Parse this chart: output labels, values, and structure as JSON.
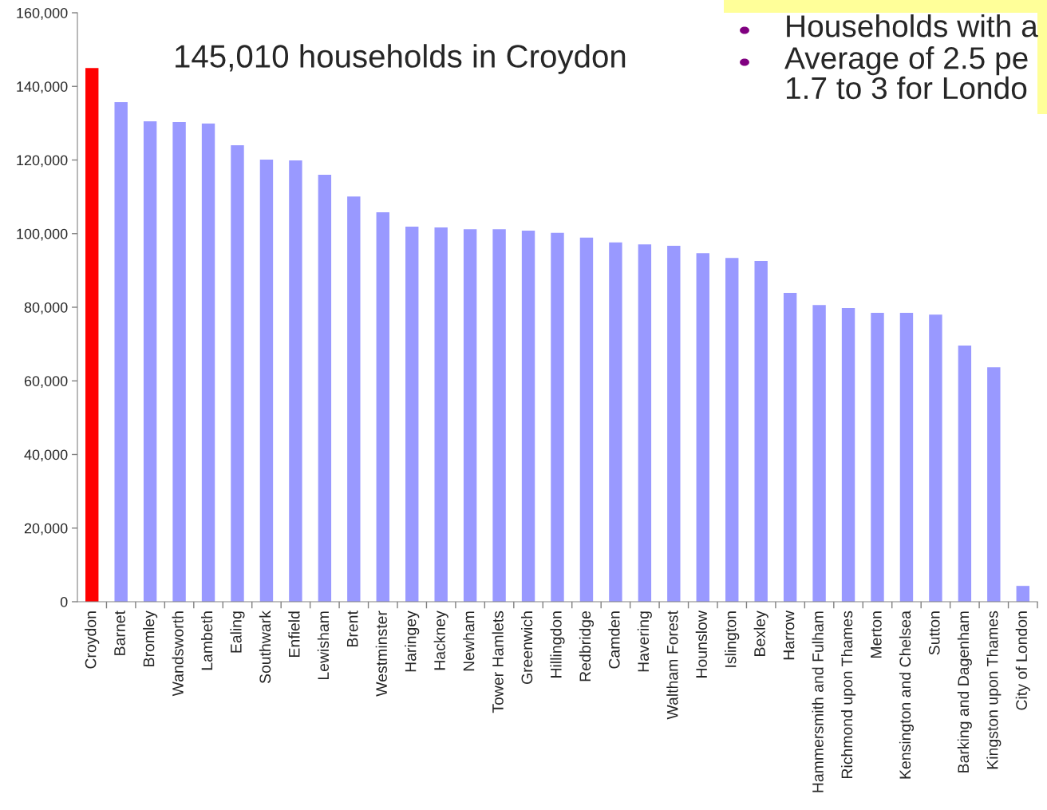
{
  "chart_data": {
    "type": "bar",
    "categories": [
      "Croydon",
      "Barnet",
      "Bromley",
      "Wandsworth",
      "Lambeth",
      "Ealing",
      "Southwark",
      "Enfield",
      "Lewisham",
      "Brent",
      "Westminster",
      "Haringey",
      "Hackney",
      "Newham",
      "Tower Hamlets",
      "Greenwich",
      "Hillingdon",
      "Redbridge",
      "Camden",
      "Havering",
      "Waltham Forest",
      "Hounslow",
      "Islington",
      "Bexley",
      "Harrow",
      "Hammersmith and Fulham",
      "Richmond upon Thames",
      "Merton",
      "Kensington and Chelsea",
      "Sutton",
      "Barking and Dagenham",
      "Kingston upon Thames",
      "City of London"
    ],
    "values": [
      145010,
      135700,
      130500,
      130300,
      129900,
      124000,
      120100,
      119900,
      116000,
      110100,
      105800,
      101900,
      101700,
      101200,
      101200,
      100800,
      100200,
      98900,
      97600,
      97100,
      96700,
      94700,
      93400,
      92600,
      83900,
      80600,
      79800,
      78500,
      78500,
      78000,
      69600,
      63700,
      4300
    ],
    "colors": [
      "#ff0000",
      "#9999ff",
      "#9999ff",
      "#9999ff",
      "#9999ff",
      "#9999ff",
      "#9999ff",
      "#9999ff",
      "#9999ff",
      "#9999ff",
      "#9999ff",
      "#9999ff",
      "#9999ff",
      "#9999ff",
      "#9999ff",
      "#9999ff",
      "#9999ff",
      "#9999ff",
      "#9999ff",
      "#9999ff",
      "#9999ff",
      "#9999ff",
      "#9999ff",
      "#9999ff",
      "#9999ff",
      "#9999ff",
      "#9999ff",
      "#9999ff",
      "#9999ff",
      "#9999ff",
      "#9999ff",
      "#9999ff",
      "#9999ff"
    ],
    "ylim": [
      0,
      160000
    ],
    "yticks": [
      0,
      {
        "value": 20000,
        "label": "20,000"
      },
      {
        "value": 40000,
        "label": "40,000"
      },
      {
        "value": 60000,
        "label": "60,000"
      },
      {
        "value": 80000,
        "label": "80,000"
      },
      {
        "value": 100000,
        "label": "100,000"
      },
      {
        "value": 120000,
        "label": "120,000"
      },
      {
        "value": 140000,
        "label": "140,000"
      },
      {
        "value": 160000,
        "label": "160,000"
      }
    ],
    "grid": false,
    "legend": false,
    "annotations": [
      "145,010 households in Croydon",
      "Households with a",
      "Average of 2.5 pe\n1.7 to 3 for Londo"
    ]
  }
}
